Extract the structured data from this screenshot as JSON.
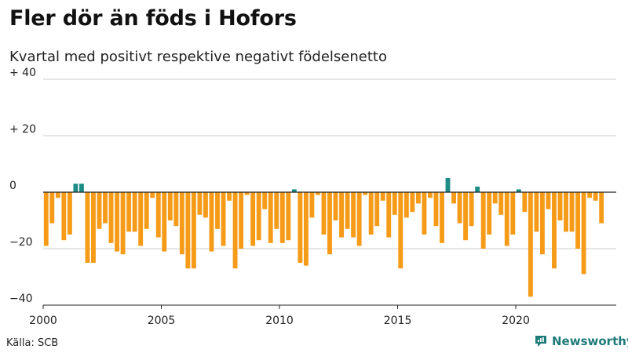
{
  "header": {
    "title": "Fler dör än föds i Hofors",
    "subtitle": "Kvartal med positivt respektive negativt födelsenetto"
  },
  "footer": {
    "source": "Källa: SCB",
    "brand": "Newsworthy"
  },
  "colors": {
    "negative": "#F59B18",
    "positive": "#1C8C84",
    "axis": "#222222",
    "grid": "#cccccc",
    "brand": "#1f7a7a"
  },
  "chart_data": {
    "type": "bar",
    "title": "Fler dör än föds i Hofors",
    "subtitle": "Kvartal med positivt respektive negativt födelsenetto",
    "xlabel": "",
    "ylabel": "",
    "x_range": [
      2000,
      2024.25
    ],
    "ylim": [
      -40,
      40
    ],
    "yticks": [
      {
        "value": 40,
        "label": "+ 40"
      },
      {
        "value": 20,
        "label": "+ 20"
      },
      {
        "value": 0,
        "label": "0"
      },
      {
        "value": -20,
        "label": "−20"
      },
      {
        "value": -40,
        "label": "−40"
      }
    ],
    "xticks": [
      {
        "value": 2000,
        "label": "2000"
      },
      {
        "value": 2005,
        "label": "2005"
      },
      {
        "value": 2010,
        "label": "2010"
      },
      {
        "value": 2015,
        "label": "2015"
      },
      {
        "value": 2020,
        "label": "2020"
      }
    ],
    "start_year": 2000,
    "periods_per_year": 4,
    "values": [
      -19,
      -11,
      -2,
      -17,
      -15,
      3,
      3,
      -25,
      -25,
      -13,
      -11,
      -18,
      -21,
      -22,
      -14,
      -14,
      -19,
      -13,
      -2,
      -16,
      -21,
      -10,
      -12,
      -22,
      -27,
      -27,
      -8,
      -9,
      -21,
      -13,
      -19,
      -3,
      -27,
      -20,
      -1,
      -19,
      -17,
      -6,
      -18,
      -13,
      -18,
      -17,
      1,
      -25,
      -26,
      -9,
      -1,
      -15,
      -22,
      -10,
      -16,
      -13,
      -16,
      -19,
      -1,
      -15,
      -12,
      -3,
      -16,
      -8,
      -27,
      -9,
      -7,
      -4,
      -15,
      -2,
      -12,
      -18,
      5,
      -4,
      -11,
      -17,
      -12,
      2,
      -20,
      -15,
      -4,
      -8,
      -19,
      -15,
      1,
      -7,
      -37,
      -14,
      -22,
      -6,
      -27,
      -10,
      -14,
      -14,
      -20,
      -29,
      -2,
      -3,
      -11
    ]
  }
}
